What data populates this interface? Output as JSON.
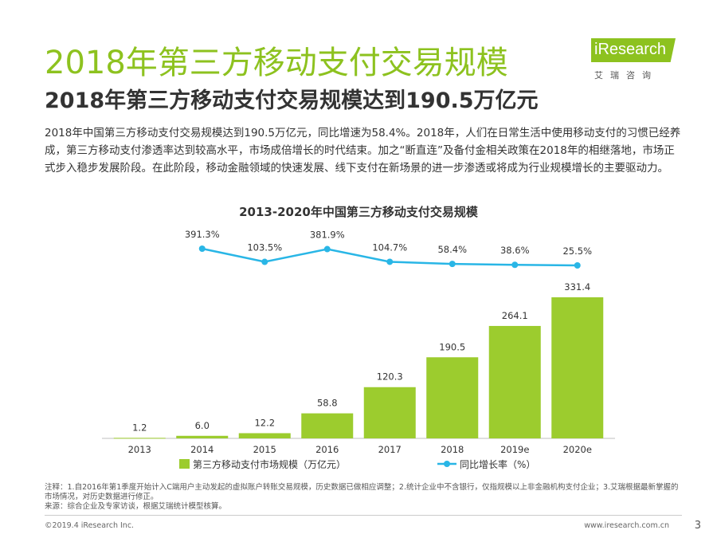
{
  "page": {
    "title": "2018年第三方移动支付交易规模",
    "subtitle": "2018年第三方移动支付交易规模达到190.5万亿元",
    "intro": "2018年中国第三方移动支付交易规模达到190.5万亿元，同比增速为58.4%。2018年，人们在日常生活中使用移动支付的习惯已经养成，第三方移动支付渗透率达到较高水平，市场成倍增长的时代结束。加之“断直连”及备付金相关政策在2018年的相继落地，市场正式步入稳步发展阶段。在此阶段，移动金融领域的快速发展、线下支付在新场景的进一步渗透或将成为行业规模增长的主要驱动力。",
    "notes": "注释：1.自2016年第1季度开始计入C端用户主动发起的虚拟账户转账交易规模，历史数据已做相应调整；2.统计企业中不含银行，仅指规模以上非金融机构支付企业；3.艾瑞根据最新掌握的市场情况，对历史数据进行修正。",
    "source": "来源：综合企业及专家访谈，根据艾瑞统计模型核算。",
    "copyright": "©2019.4 iResearch Inc.",
    "website": "www.iresearch.com.cn",
    "page_number": "3"
  },
  "logo": {
    "name": "iResearch",
    "chinese": "艾瑞咨询"
  },
  "colors": {
    "accent": "#8dc21f",
    "bar": "#9ccc2e",
    "line": "#29b6e6",
    "text": "#333333"
  },
  "chart_data": {
    "type": "bar",
    "title": "2013-2020年中国第三方移动支付交易规模",
    "categories": [
      "2013",
      "2014",
      "2015",
      "2016",
      "2017",
      "2018",
      "2019e",
      "2020e"
    ],
    "series": [
      {
        "name": "第三方移动支付市场规模（万亿元）",
        "kind": "bar",
        "values": [
          1.2,
          6.0,
          12.2,
          58.8,
          120.3,
          190.5,
          264.1,
          331.4
        ],
        "labels": [
          "1.2",
          "6.0",
          "12.2",
          "58.8",
          "120.3",
          "190.5",
          "264.1",
          "331.4"
        ]
      },
      {
        "name": "同比增长率（%）",
        "kind": "line",
        "values": [
          null,
          391.3,
          103.5,
          381.9,
          104.7,
          58.4,
          38.6,
          25.5
        ],
        "labels": [
          "",
          "391.3%",
          "103.5%",
          "381.9%",
          "104.7%",
          "58.4%",
          "38.6%",
          "25.5%"
        ]
      }
    ],
    "ylim": [
      0,
      331.4
    ],
    "legend": "bottom",
    "xlabel": "",
    "ylabel": ""
  }
}
